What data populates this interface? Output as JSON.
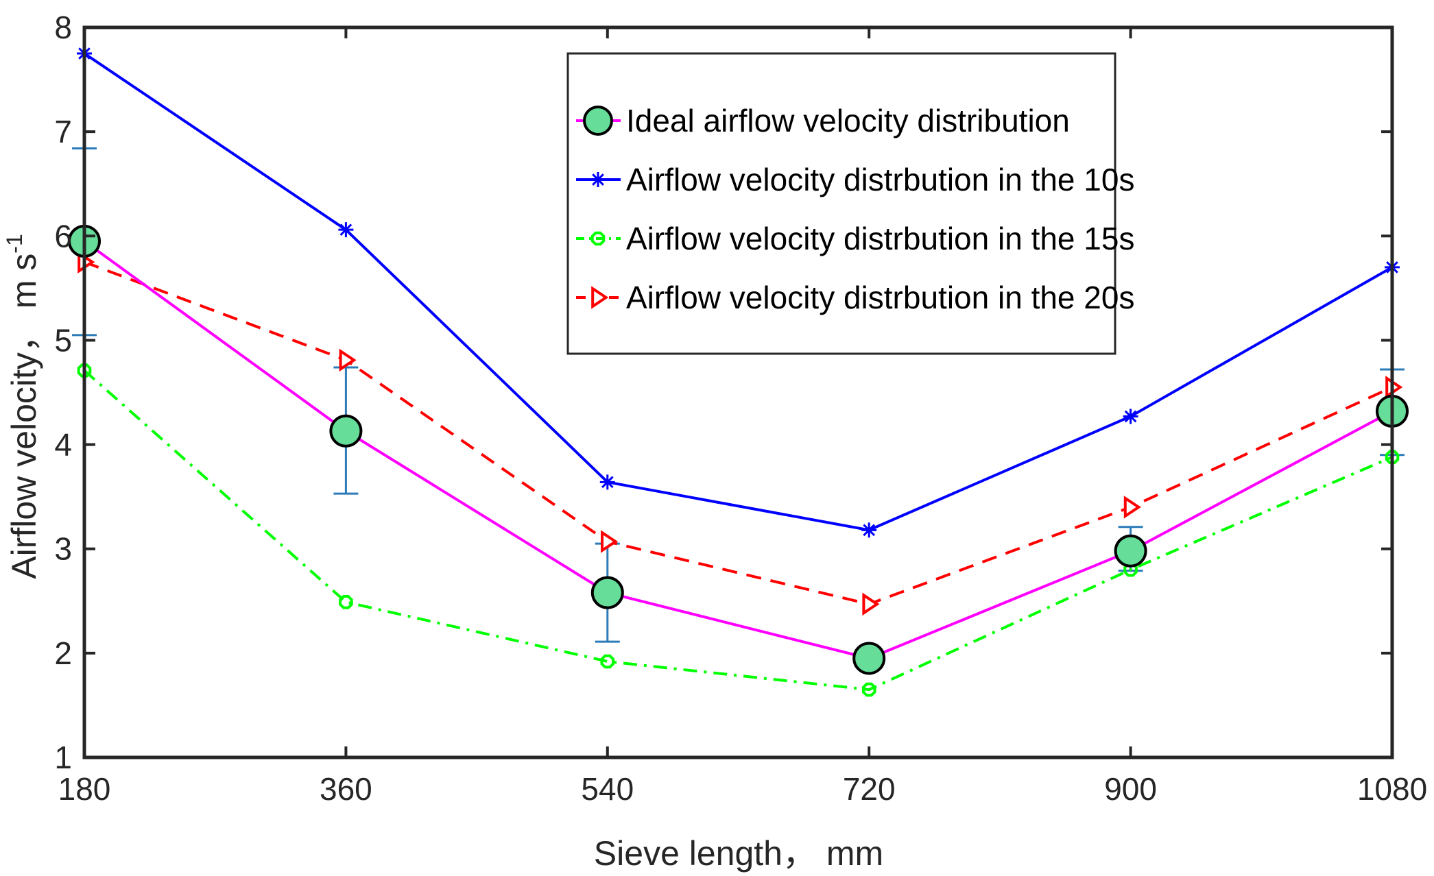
{
  "chart_data": {
    "type": "line",
    "title": "",
    "xlabel": "Sieve length， mm",
    "ylabel": "Airflow velocity， m s",
    "ylabel_superscript": "-1",
    "x": [
      180,
      360,
      540,
      720,
      900,
      1080
    ],
    "xticks": [
      "180",
      "360",
      "540",
      "720",
      "900",
      "1080"
    ],
    "xlim": [
      180,
      1080
    ],
    "ylim": [
      1,
      8
    ],
    "yticks": [
      "1",
      "2",
      "3",
      "4",
      "5",
      "6",
      "7",
      "8"
    ],
    "grid": false,
    "legend_position": "top-right",
    "series": [
      {
        "name": "Ideal airflow velocity distribution",
        "values": [
          5.95,
          4.13,
          2.58,
          1.95,
          2.98,
          4.32
        ],
        "error_low": [
          5.05,
          3.53,
          2.11,
          null,
          2.79,
          3.9
        ],
        "error_high": [
          6.84,
          4.74,
          3.05,
          null,
          3.21,
          4.72
        ],
        "color": "#ff00ff",
        "marker": "circle",
        "marker_fill": "#66dd99",
        "line_style": "solid"
      },
      {
        "name": "Airflow velocity distrbution in the 10s",
        "values": [
          7.75,
          6.06,
          3.64,
          3.18,
          4.27,
          5.7
        ],
        "color": "#0000ff",
        "marker": "asterisk",
        "line_style": "solid"
      },
      {
        "name": "Airflow velocity distrbution in the 15s",
        "values": [
          4.71,
          2.49,
          1.92,
          1.65,
          2.8,
          3.88
        ],
        "color": "#00ff00",
        "marker": "octagon",
        "line_style": "dashdot"
      },
      {
        "name": "Airflow velocity distrbution in the 20s",
        "values": [
          5.75,
          4.81,
          3.07,
          2.47,
          3.4,
          4.55
        ],
        "color": "#ff0000",
        "marker": "triangle-right",
        "line_style": "dashed"
      }
    ],
    "error_bar_color": "#2b7bb9"
  }
}
